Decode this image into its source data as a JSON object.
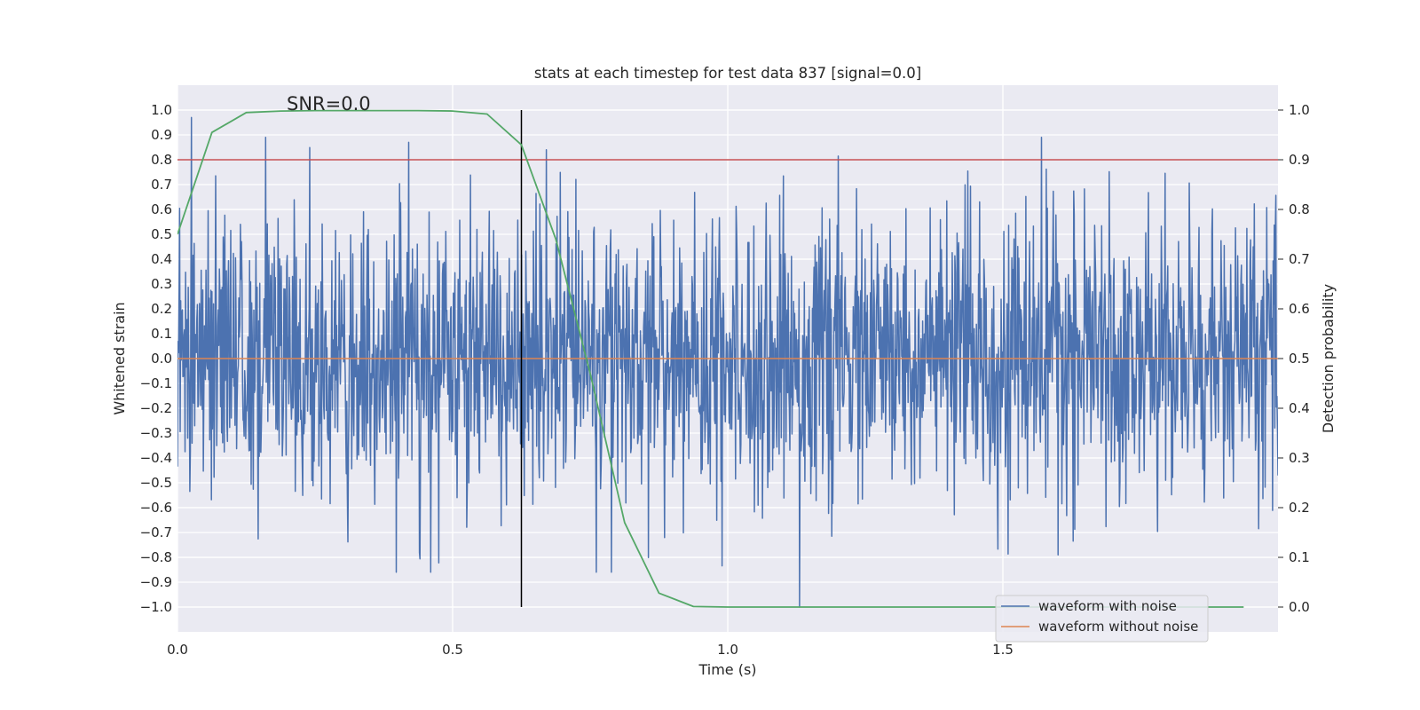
{
  "chart_data": {
    "type": "line",
    "title": "stats at each timestep for test data 837 [signal=0.0]",
    "xlabel": "Time (s)",
    "ylabel": "Whitened strain",
    "y2label": "Detection probability",
    "xlim": [
      0.0,
      2.0
    ],
    "ylim": [
      -1.1,
      1.1
    ],
    "y2lim": [
      -0.05,
      1.05
    ],
    "xticks": [
      0.0,
      0.5,
      1.0,
      1.5
    ],
    "xtick_labels": [
      "0.0",
      "0.5",
      "1.0",
      "1.5"
    ],
    "yticks": [
      1.0,
      0.9,
      0.8,
      0.7,
      0.6,
      0.5,
      0.4,
      0.3,
      0.2,
      0.1,
      0.0,
      -0.1,
      -0.2,
      -0.3,
      -0.4,
      -0.5,
      -0.6,
      -0.7,
      -0.8,
      -0.9,
      -1.0
    ],
    "ytick_labels": [
      "1.0",
      "0.9",
      "0.8",
      "0.7",
      "0.6",
      "0.5",
      "0.4",
      "0.3",
      "0.2",
      "0.1",
      "0.0",
      "−0.1",
      "−0.2",
      "−0.3",
      "−0.4",
      "−0.5",
      "−0.6",
      "−0.7",
      "−0.8",
      "−0.9",
      "−1.0"
    ],
    "y2ticks": [
      1.0,
      0.9,
      0.8,
      0.7,
      0.6,
      0.5,
      0.4,
      0.3,
      0.2,
      0.1,
      0.0
    ],
    "y2tick_labels": [
      "1.0",
      "0.9",
      "0.8",
      "0.7",
      "0.6",
      "0.5",
      "0.4",
      "0.3",
      "0.2",
      "0.1",
      "0.0"
    ],
    "annotation": "SNR=0.0",
    "legend": {
      "location": "lower-right",
      "entries": [
        "waveform with noise",
        "waveform without noise"
      ]
    },
    "series": [
      {
        "name": "waveform with noise",
        "axis": "left",
        "color": "#4c72b0",
        "x_range": [
          0.0,
          2.0
        ],
        "n_points": 2048,
        "peaks": [
          {
            "x": 0.025,
            "y": 0.97
          },
          {
            "x": 0.16,
            "y": 0.89
          },
          {
            "x": 0.42,
            "y": 0.87
          },
          {
            "x": 0.67,
            "y": 0.84
          },
          {
            "x": 1.57,
            "y": 0.89
          },
          {
            "x": 1.13,
            "y": -1.0
          },
          {
            "x": 1.6,
            "y": -0.79
          },
          {
            "x": 0.44,
            "y": -0.78
          }
        ]
      },
      {
        "name": "waveform without noise",
        "axis": "left",
        "color": "#dd8452",
        "x": [
          0.0,
          2.0
        ],
        "y": [
          0.0,
          0.0
        ]
      },
      {
        "name": "detection probability",
        "axis": "right",
        "color": "#55a868",
        "x": [
          0.0,
          0.0625,
          0.125,
          0.1875,
          0.25,
          0.3125,
          0.375,
          0.4375,
          0.5,
          0.5625,
          0.625,
          0.6875,
          0.75,
          0.8125,
          0.875,
          0.9375,
          1.0,
          1.0625,
          1.125,
          1.1875,
          1.25,
          1.3125,
          1.375,
          1.4375,
          1.5,
          1.5625,
          1.625,
          1.6875,
          1.75,
          1.8125,
          1.875,
          1.9375
        ],
        "y": [
          0.75,
          0.955,
          0.995,
          0.998,
          0.999,
          0.999,
          0.999,
          0.999,
          0.998,
          0.992,
          0.93,
          0.74,
          0.47,
          0.17,
          0.028,
          0.001,
          0.0,
          0.0,
          0.0,
          0.0,
          0.0,
          0.0,
          0.0,
          0.0,
          0.0,
          0.0,
          0.0,
          0.0,
          0.0,
          0.0,
          0.0,
          0.0
        ]
      }
    ],
    "reference_lines": [
      {
        "name": "threshold",
        "axis": "right",
        "orientation": "horizontal",
        "value": 0.9,
        "color": "#c44e52"
      },
      {
        "name": "detection time",
        "axis": "right",
        "orientation": "vertical",
        "x": 0.625,
        "y_range": [
          0.0,
          1.0
        ],
        "color": "#000000"
      }
    ]
  }
}
